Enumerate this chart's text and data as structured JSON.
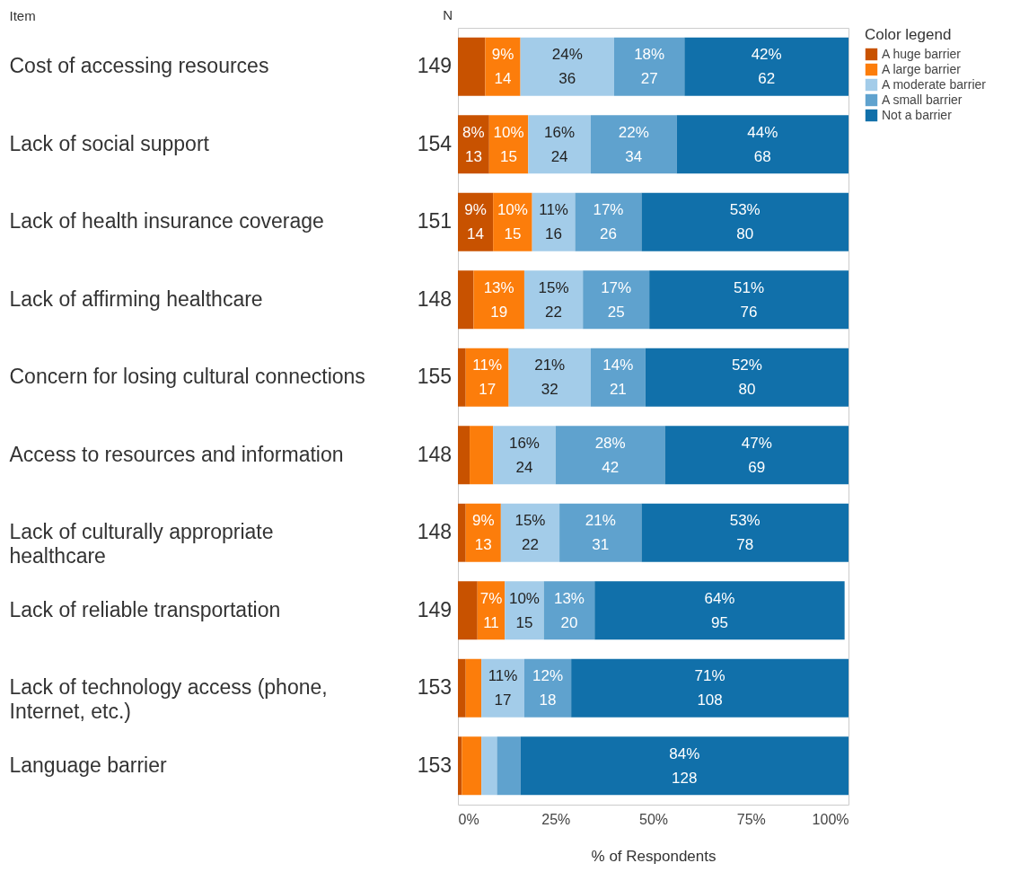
{
  "chart_data": {
    "type": "bar",
    "orientation": "horizontal",
    "stacked": true,
    "xlabel": "% of Respondents",
    "ylabel": "Item",
    "legend_title": "Color legend",
    "legend": "top right",
    "grid": false,
    "categories": [
      "Cost of accessing resources",
      "Lack of social support",
      "Lack of health insurance coverage",
      "Lack of affirming healthcare",
      "Concern for losing cultural connections",
      "Access to resources and information",
      "Lack of culturally appropriate healthcare",
      "Lack of reliable transportation",
      "Lack of technology access (phone, Internet, etc.)",
      "Language barrier"
    ],
    "xlim": [
      0,
      100
    ],
    "xticks": [
      {
        "value": 0,
        "label": "0%"
      },
      {
        "value": 25,
        "label": "25%"
      },
      {
        "value": 50,
        "label": "50%"
      },
      {
        "value": 75,
        "label": "75%"
      },
      {
        "value": 100,
        "label": "100%"
      }
    ],
    "series": [
      {
        "name": "A huge barrier",
        "color": "#c85200",
        "values": [
          7,
          8,
          9,
          4,
          2,
          3,
          2,
          5,
          2,
          1
        ],
        "value_labels": [
          null,
          "8%\n13",
          "9%\n14",
          null,
          null,
          null,
          null,
          null,
          null,
          null
        ]
      },
      {
        "name": "A large barrier",
        "color": "#fc7d0b",
        "values": [
          9,
          10,
          10,
          13,
          11,
          6,
          9,
          7,
          4,
          5
        ],
        "value_labels": [
          "9%\n14",
          "10%\n15",
          "10%\n15",
          "13%\n19",
          "11%\n17",
          null,
          "9%\n13",
          "7%\n11",
          null,
          null
        ]
      },
      {
        "name": "A moderate barrier",
        "color": "#a3cce9",
        "values": [
          24,
          16,
          11,
          15,
          21,
          16,
          15,
          10,
          11,
          4
        ],
        "value_labels": [
          "24%\n36",
          "16%\n24",
          "11%\n16",
          "15%\n22",
          "21%\n32",
          "16%\n24",
          "15%\n22",
          "10%\n15",
          "11%\n17",
          null
        ]
      },
      {
        "name": "A small barrier",
        "color": "#5fa2ce",
        "values": [
          18,
          22,
          17,
          17,
          14,
          28,
          21,
          13,
          12,
          6
        ],
        "value_labels": [
          "18%\n27",
          "22%\n34",
          "17%\n26",
          "17%\n25",
          "14%\n21",
          "28%\n42",
          "21%\n31",
          "13%\n20",
          "12%\n18",
          null
        ]
      },
      {
        "name": "Not a barrier",
        "color": "#1170aa",
        "values": [
          42,
          44,
          53,
          51,
          52,
          47,
          53,
          64,
          71,
          84
        ],
        "value_labels": [
          "42%\n62",
          "44%\n68",
          "53%\n80",
          "51%\n76",
          "52%\n80",
          "47%\n69",
          "53%\n78",
          "64%\n95",
          "71%\n108",
          "84%\n128"
        ]
      }
    ],
    "annotations": [
      "N",
      "149",
      "154",
      "151",
      "148",
      "155",
      "148",
      "148",
      "149",
      "153",
      "153"
    ]
  }
}
